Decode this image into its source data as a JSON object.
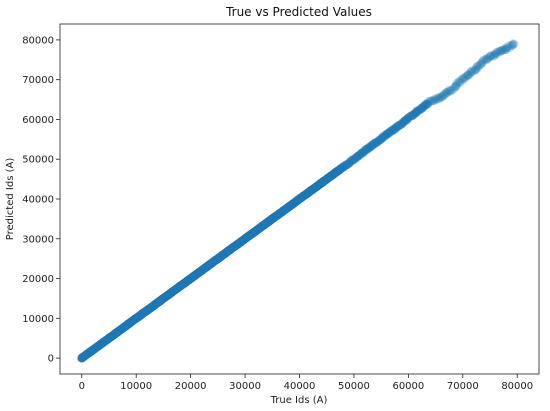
{
  "chart_data": {
    "type": "scatter",
    "title": "True vs Predicted Values",
    "xlabel": "True Ids (A)",
    "ylabel": "Predicted Ids (A)",
    "xlim": [
      -4000,
      84000
    ],
    "ylim": [
      -4000,
      84000
    ],
    "xticks": [
      0,
      10000,
      20000,
      30000,
      40000,
      50000,
      60000,
      70000,
      80000
    ],
    "yticks": [
      0,
      10000,
      20000,
      30000,
      40000,
      50000,
      60000,
      70000,
      80000
    ],
    "xtick_labels": [
      "0",
      "10000",
      "20000",
      "30000",
      "40000",
      "50000",
      "60000",
      "70000",
      "80000"
    ],
    "ytick_labels": [
      "0",
      "10000",
      "20000",
      "30000",
      "40000",
      "50000",
      "60000",
      "70000",
      "80000"
    ],
    "grid": false,
    "marker_color": "#1f77b4",
    "series": [
      {
        "x": [
          0,
          2000,
          5000,
          8000,
          10000,
          15000,
          20000,
          25000,
          30000,
          35000,
          40000,
          45000,
          48000,
          50000,
          52000,
          54000,
          56000,
          58000,
          60000,
          62000,
          64000,
          66000,
          68000,
          70000,
          72000,
          74000,
          76000,
          78000,
          79500
        ],
        "y": [
          0,
          2000,
          5000,
          8000,
          10000,
          15000,
          20000,
          25000,
          30000,
          35000,
          40000,
          45000,
          48000,
          50000,
          52100,
          54100,
          56200,
          58200,
          60300,
          62400,
          64500,
          65600,
          67500,
          70200,
          72300,
          74800,
          76500,
          77800,
          79000
        ]
      }
    ]
  }
}
